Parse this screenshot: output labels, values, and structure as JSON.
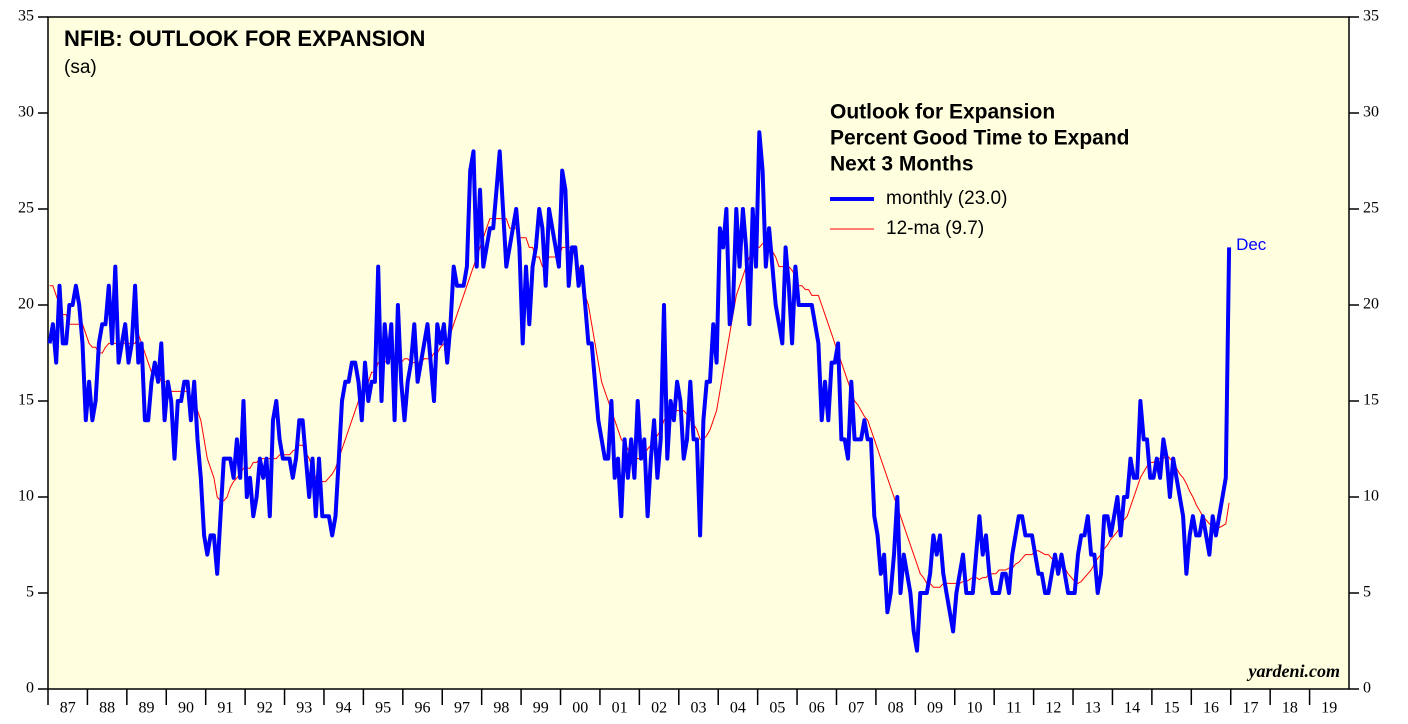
{
  "chart_data": {
    "type": "line",
    "title": "NFIB: OUTLOOK FOR EXPANSION",
    "subtitle": "(sa)",
    "legend_title": [
      "Outlook for Expansion",
      "Percent Good Time to Expand",
      "Next 3 Months"
    ],
    "annotation": "Dec",
    "source": "yardeni.com",
    "xlim": [
      1987,
      2020
    ],
    "xticks": [
      {
        "value": 1987,
        "label": "87"
      },
      {
        "value": 1988,
        "label": "88"
      },
      {
        "value": 1989,
        "label": "89"
      },
      {
        "value": 1990,
        "label": "90"
      },
      {
        "value": 1991,
        "label": "91"
      },
      {
        "value": 1992,
        "label": "92"
      },
      {
        "value": 1993,
        "label": "93"
      },
      {
        "value": 1994,
        "label": "94"
      },
      {
        "value": 1995,
        "label": "95"
      },
      {
        "value": 1996,
        "label": "96"
      },
      {
        "value": 1997,
        "label": "97"
      },
      {
        "value": 1998,
        "label": "98"
      },
      {
        "value": 1999,
        "label": "99"
      },
      {
        "value": 2000,
        "label": "00"
      },
      {
        "value": 2001,
        "label": "01"
      },
      {
        "value": 2002,
        "label": "02"
      },
      {
        "value": 2003,
        "label": "03"
      },
      {
        "value": 2004,
        "label": "04"
      },
      {
        "value": 2005,
        "label": "05"
      },
      {
        "value": 2006,
        "label": "06"
      },
      {
        "value": 2007,
        "label": "07"
      },
      {
        "value": 2008,
        "label": "08"
      },
      {
        "value": 2009,
        "label": "09"
      },
      {
        "value": 2010,
        "label": "10"
      },
      {
        "value": 2011,
        "label": "11"
      },
      {
        "value": 2012,
        "label": "12"
      },
      {
        "value": 2013,
        "label": "13"
      },
      {
        "value": 2014,
        "label": "14"
      },
      {
        "value": 2015,
        "label": "15"
      },
      {
        "value": 2016,
        "label": "16"
      },
      {
        "value": 2017,
        "label": "17"
      },
      {
        "value": 2018,
        "label": "18"
      },
      {
        "value": 2019,
        "label": "19"
      }
    ],
    "ylim": [
      0,
      35
    ],
    "yticks": [
      0,
      5,
      10,
      15,
      20,
      25,
      30,
      35
    ],
    "x": [
      "1987-01",
      "1987-02",
      "1987-03",
      "1987-04",
      "1987-05",
      "1987-06",
      "1987-07",
      "1987-08",
      "1987-09",
      "1987-10",
      "1987-11",
      "1987-12",
      "1988-01",
      "1988-02",
      "1988-03",
      "1988-04",
      "1988-05",
      "1988-06",
      "1988-07",
      "1988-08",
      "1988-09",
      "1988-10",
      "1988-11",
      "1988-12",
      "1989-01",
      "1989-02",
      "1989-03",
      "1989-04",
      "1989-05",
      "1989-06",
      "1989-07",
      "1989-08",
      "1989-09",
      "1989-10",
      "1989-11",
      "1989-12",
      "1990-01",
      "1990-02",
      "1990-03",
      "1990-04",
      "1990-05",
      "1990-06",
      "1990-07",
      "1990-08",
      "1990-09",
      "1990-10",
      "1990-11",
      "1990-12",
      "1991-01",
      "1991-02",
      "1991-03",
      "1991-04",
      "1991-05",
      "1991-06",
      "1991-07",
      "1991-08",
      "1991-09",
      "1991-10",
      "1991-11",
      "1991-12",
      "1992-01",
      "1992-02",
      "1992-03",
      "1992-04",
      "1992-05",
      "1992-06",
      "1992-07",
      "1992-08",
      "1992-09",
      "1992-10",
      "1992-11",
      "1992-12",
      "1993-01",
      "1993-02",
      "1993-03",
      "1993-04",
      "1993-05",
      "1993-06",
      "1993-07",
      "1993-08",
      "1993-09",
      "1993-10",
      "1993-11",
      "1993-12",
      "1994-01",
      "1994-02",
      "1994-03",
      "1994-04",
      "1994-05",
      "1994-06",
      "1994-07",
      "1994-08",
      "1994-09",
      "1994-10",
      "1994-11",
      "1994-12",
      "1995-01",
      "1995-02",
      "1995-03",
      "1995-04",
      "1995-05",
      "1995-06",
      "1995-07",
      "1995-08",
      "1995-09",
      "1995-10",
      "1995-11",
      "1995-12",
      "1996-01",
      "1996-02",
      "1996-03",
      "1996-04",
      "1996-05",
      "1996-06",
      "1996-07",
      "1996-08",
      "1996-09",
      "1996-10",
      "1996-11",
      "1996-12",
      "1997-01",
      "1997-02",
      "1997-03",
      "1997-04",
      "1997-05",
      "1997-06",
      "1997-07",
      "1997-08",
      "1997-09",
      "1997-10",
      "1997-11",
      "1997-12",
      "1998-01",
      "1998-02",
      "1998-03",
      "1998-04",
      "1998-05",
      "1998-06",
      "1998-07",
      "1998-08",
      "1998-09",
      "1998-10",
      "1998-11",
      "1998-12",
      "1999-01",
      "1999-02",
      "1999-03",
      "1999-04",
      "1999-05",
      "1999-06",
      "1999-07",
      "1999-08",
      "1999-09",
      "1999-10",
      "1999-11",
      "1999-12",
      "2000-01",
      "2000-02",
      "2000-03",
      "2000-04",
      "2000-05",
      "2000-06",
      "2000-07",
      "2000-08",
      "2000-09",
      "2000-10",
      "2000-11",
      "2000-12",
      "2001-01",
      "2001-02",
      "2001-03",
      "2001-04",
      "2001-05",
      "2001-06",
      "2001-07",
      "2001-08",
      "2001-09",
      "2001-10",
      "2001-11",
      "2001-12",
      "2002-01",
      "2002-02",
      "2002-03",
      "2002-04",
      "2002-05",
      "2002-06",
      "2002-07",
      "2002-08",
      "2002-09",
      "2002-10",
      "2002-11",
      "2002-12",
      "2003-01",
      "2003-02",
      "2003-03",
      "2003-04",
      "2003-05",
      "2003-06",
      "2003-07",
      "2003-08",
      "2003-09",
      "2003-10",
      "2003-11",
      "2003-12",
      "2004-01",
      "2004-02",
      "2004-03",
      "2004-04",
      "2004-05",
      "2004-06",
      "2004-07",
      "2004-08",
      "2004-09",
      "2004-10",
      "2004-11",
      "2004-12",
      "2005-01",
      "2005-02",
      "2005-03",
      "2005-04",
      "2005-05",
      "2005-06",
      "2005-07",
      "2005-08",
      "2005-09",
      "2005-10",
      "2005-11",
      "2005-12",
      "2006-01",
      "2006-02",
      "2006-03",
      "2006-04",
      "2006-05",
      "2006-06",
      "2006-07",
      "2006-08",
      "2006-09",
      "2006-10",
      "2006-11",
      "2006-12",
      "2007-01",
      "2007-02",
      "2007-03",
      "2007-04",
      "2007-05",
      "2007-06",
      "2007-07",
      "2007-08",
      "2007-09",
      "2007-10",
      "2007-11",
      "2007-12",
      "2008-01",
      "2008-02",
      "2008-03",
      "2008-04",
      "2008-05",
      "2008-06",
      "2008-07",
      "2008-08",
      "2008-09",
      "2008-10",
      "2008-11",
      "2008-12",
      "2009-01",
      "2009-02",
      "2009-03",
      "2009-04",
      "2009-05",
      "2009-06",
      "2009-07",
      "2009-08",
      "2009-09",
      "2009-10",
      "2009-11",
      "2009-12",
      "2010-01",
      "2010-02",
      "2010-03",
      "2010-04",
      "2010-05",
      "2010-06",
      "2010-07",
      "2010-08",
      "2010-09",
      "2010-10",
      "2010-11",
      "2010-12",
      "2011-01",
      "2011-02",
      "2011-03",
      "2011-04",
      "2011-05",
      "2011-06",
      "2011-07",
      "2011-08",
      "2011-09",
      "2011-10",
      "2011-11",
      "2011-12",
      "2012-01",
      "2012-02",
      "2012-03",
      "2012-04",
      "2012-05",
      "2012-06",
      "2012-07",
      "2012-08",
      "2012-09",
      "2012-10",
      "2012-11",
      "2012-12",
      "2013-01",
      "2013-02",
      "2013-03",
      "2013-04",
      "2013-05",
      "2013-06",
      "2013-07",
      "2013-08",
      "2013-09",
      "2013-10",
      "2013-11",
      "2013-12",
      "2014-01",
      "2014-02",
      "2014-03",
      "2014-04",
      "2014-05",
      "2014-06",
      "2014-07",
      "2014-08",
      "2014-09",
      "2014-10",
      "2014-11",
      "2014-12",
      "2015-01",
      "2015-02",
      "2015-03",
      "2015-04",
      "2015-05",
      "2015-06",
      "2015-07",
      "2015-08",
      "2015-09",
      "2015-10",
      "2015-11",
      "2015-12",
      "2016-01",
      "2016-02",
      "2016-03",
      "2016-04",
      "2016-05",
      "2016-06",
      "2016-07",
      "2016-08",
      "2016-09",
      "2016-10",
      "2016-11",
      "2016-12"
    ],
    "series": [
      {
        "name": "monthly (23.0)",
        "color": "#0000ff",
        "width": 4,
        "values": [
          18,
          19,
          17,
          21,
          18,
          18,
          20,
          20,
          21,
          20,
          18,
          14,
          16,
          14,
          15,
          18,
          19,
          19,
          21,
          18,
          22,
          17,
          18,
          19,
          17,
          18,
          21,
          17,
          18,
          14,
          14,
          16,
          17,
          16,
          18,
          14,
          16,
          15,
          12,
          15,
          15,
          16,
          16,
          14,
          16,
          13,
          11,
          8,
          7,
          8,
          8,
          6,
          9,
          12,
          12,
          12,
          11,
          13,
          11,
          15,
          10,
          11,
          9,
          10,
          12,
          11,
          12,
          9,
          14,
          15,
          13,
          12,
          12,
          12,
          11,
          12,
          14,
          14,
          12,
          10,
          12,
          9,
          12,
          9,
          9,
          9,
          8,
          9,
          12,
          15,
          16,
          16,
          17,
          17,
          16,
          14,
          17,
          15,
          16,
          16,
          22,
          15,
          19,
          17,
          19,
          14,
          20,
          16,
          14,
          16,
          17,
          19,
          16,
          17,
          18,
          19,
          17,
          15,
          19,
          18,
          19,
          17,
          19,
          22,
          21,
          21,
          21,
          22,
          27,
          28,
          22,
          26,
          22,
          23,
          24,
          24,
          26,
          28,
          25,
          22,
          23,
          24,
          25,
          23,
          18,
          22,
          19,
          22,
          23,
          25,
          24,
          21,
          25,
          24,
          23,
          22,
          27,
          26,
          21,
          23,
          23,
          21,
          22,
          20,
          18,
          18,
          16,
          14,
          13,
          12,
          12,
          15,
          11,
          12,
          9,
          13,
          11,
          13,
          11,
          15,
          12,
          13,
          9,
          12,
          14,
          11,
          13,
          20,
          12,
          15,
          14,
          16,
          15,
          12,
          13,
          16,
          13,
          13,
          8,
          14,
          16,
          16,
          19,
          17,
          24,
          23,
          25,
          19,
          20,
          25,
          22,
          25,
          23,
          19,
          25,
          22,
          29,
          27,
          22,
          24,
          22,
          20,
          19,
          18,
          23,
          21,
          18,
          22,
          20,
          20,
          20,
          20,
          20,
          19,
          18,
          14,
          16,
          14,
          17,
          17,
          18,
          13,
          13,
          12,
          16,
          13,
          13,
          13,
          14,
          13,
          13,
          9,
          8,
          6,
          7,
          4,
          5,
          7,
          10,
          5,
          7,
          6,
          5,
          3,
          2,
          5,
          5,
          5,
          6,
          8,
          7,
          8,
          6,
          5,
          4,
          3,
          5,
          6,
          7,
          5,
          5,
          5,
          7,
          9,
          7,
          8,
          6,
          5,
          5,
          5,
          6,
          6,
          5,
          7,
          8,
          9,
          9,
          8,
          8,
          8,
          7,
          6,
          6,
          5,
          5,
          6,
          7,
          6,
          7,
          6,
          5,
          5,
          5,
          7,
          8,
          8,
          9,
          7,
          7,
          5,
          6,
          9,
          9,
          8,
          9,
          10,
          8,
          10,
          10,
          12,
          11,
          11,
          15,
          13,
          13,
          11,
          11,
          12,
          11,
          13,
          12,
          10,
          12,
          11,
          10,
          9,
          6,
          8,
          9,
          8,
          8,
          9,
          8,
          7,
          9,
          8,
          9,
          10,
          11,
          23
        ]
      },
      {
        "name": "12-ma (9.7)",
        "color": "#ff0000",
        "width": 1,
        "values": [
          21,
          21,
          20.5,
          20,
          19.5,
          19.5,
          19,
          19,
          19,
          19,
          19,
          18.5,
          18,
          17.8,
          17.8,
          17.5,
          17.5,
          17.8,
          18,
          18,
          18,
          18,
          18,
          18,
          18,
          18,
          18,
          18.5,
          18,
          17.5,
          17,
          16.5,
          16.5,
          16.5,
          16,
          16,
          16,
          15.5,
          15.5,
          15.5,
          15.5,
          15.5,
          15.5,
          15,
          15,
          14.5,
          14,
          13,
          12,
          11.5,
          11,
          10,
          9.8,
          9.8,
          10,
          10.5,
          10.8,
          11,
          11.2,
          11.5,
          11.5,
          11.5,
          11.8,
          11.8,
          12,
          12,
          12,
          12,
          12,
          12,
          12.2,
          12.2,
          12.2,
          12.2,
          12.4,
          12.5,
          12.7,
          12.7,
          12.3,
          12,
          11.5,
          11,
          10.8,
          10.8,
          10.8,
          11,
          11.2,
          11.5,
          12,
          12.5,
          13,
          13.5,
          14,
          14.5,
          15,
          15.5,
          16,
          16,
          16.5,
          16.5,
          17,
          17,
          17,
          17.2,
          17.2,
          17,
          17,
          17,
          17.2,
          17.2,
          17,
          17,
          17,
          17,
          17.2,
          17.2,
          17.2,
          17.5,
          17.5,
          17.8,
          18,
          18.2,
          18.5,
          19,
          19.5,
          20,
          20.5,
          21,
          21.5,
          22,
          22.5,
          23,
          23.5,
          24,
          24.5,
          24.5,
          24.5,
          24.5,
          24.5,
          24.5,
          24,
          24,
          24,
          23.5,
          23.5,
          23.5,
          23,
          23,
          22.5,
          22.5,
          22,
          22,
          22.5,
          22.5,
          22.5,
          22.5,
          23,
          23,
          23,
          23,
          22.5,
          22,
          21.5,
          20.5,
          20,
          19,
          18,
          17,
          16,
          15.5,
          15,
          14.5,
          14,
          13.5,
          13,
          12.8,
          12.5,
          12.2,
          12,
          12,
          12,
          12.2,
          12.5,
          12.7,
          13,
          13.2,
          13.5,
          14,
          14.2,
          14.5,
          14.5,
          14.5,
          14.5,
          14.5,
          14.3,
          14,
          13.8,
          13.5,
          13,
          13,
          13.2,
          13.5,
          14,
          14.5,
          15.5,
          16.5,
          17.5,
          18.5,
          19.5,
          20.5,
          21,
          21.5,
          22,
          22.5,
          22.5,
          23,
          23,
          23.2,
          23.2,
          23,
          22.8,
          22.5,
          22,
          22,
          22,
          22,
          21.8,
          21.5,
          21,
          21,
          20.8,
          20.8,
          20.5,
          20.5,
          20.5,
          20,
          19.5,
          19,
          18.5,
          18,
          17.5,
          17,
          16.5,
          16,
          15.5,
          15,
          14.8,
          14.5,
          14.2,
          14,
          13.5,
          13,
          12.5,
          12,
          11.5,
          11,
          10.5,
          10,
          9.5,
          9,
          8.5,
          8,
          7.5,
          7,
          6.5,
          6,
          5.8,
          5.5,
          5.5,
          5.3,
          5.3,
          5.3,
          5.5,
          5.5,
          5.5,
          5.5,
          5.5,
          5.5,
          5.6,
          5.6,
          5.7,
          5.8,
          5.8,
          5.7,
          5.8,
          5.8,
          6,
          6,
          6,
          6.2,
          6.2,
          6.2,
          6.3,
          6.3,
          6.5,
          6.6,
          6.8,
          7,
          7,
          7,
          7.2,
          7.2,
          7.1,
          7,
          7,
          6.8,
          6.7,
          6.6,
          6.5,
          6.3,
          6,
          5.8,
          5.6,
          5.5,
          5.6,
          5.8,
          6,
          6.2,
          6.5,
          6.8,
          7,
          7.3,
          7.5,
          7.8,
          8,
          8.2,
          8.5,
          8.8,
          9,
          9.5,
          10,
          10.5,
          11,
          11.3,
          11.6,
          11.8,
          11.8,
          12,
          12,
          12,
          12.2,
          12,
          11.8,
          11.5,
          11.2,
          11,
          10.7,
          10.3,
          10,
          9.6,
          9.3,
          9,
          8.8,
          8.6,
          8.5,
          8.5,
          8.4,
          8.5,
          8.6,
          9.7
        ]
      }
    ]
  }
}
